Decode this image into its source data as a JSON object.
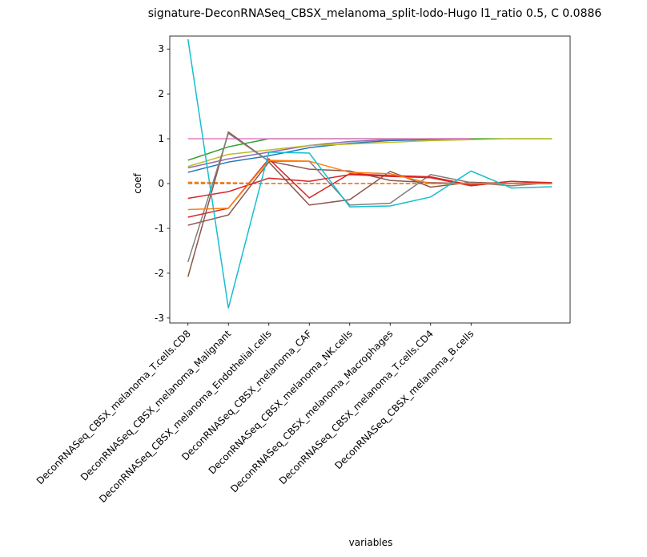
{
  "chart_data": {
    "type": "line",
    "title": "signature-DeconRNASeq_CBSX_melanoma_split-lodo-Hugo l1_ratio 0.5, C 0.0886",
    "x_label": "variables",
    "y_label": "coef",
    "x": [
      0,
      1,
      2,
      3,
      4,
      5,
      6,
      7,
      8,
      9
    ],
    "xlim": [
      -0.45,
      9.45
    ],
    "ylim": [
      -3.11,
      3.29
    ],
    "xticks": [
      {
        "value": 0,
        "label": "DeconRNASeq_CBSX_melanoma_T.cells.CD8"
      },
      {
        "value": 1,
        "label": "DeconRNASeq_CBSX_melanoma_Malignant"
      },
      {
        "value": 2,
        "label": "DeconRNASeq_CBSX_melanoma_Endothelial.cells"
      },
      {
        "value": 3,
        "label": "DeconRNASeq_CBSX_melanoma_CAF"
      },
      {
        "value": 4,
        "label": "DeconRNASeq_CBSX_melanoma_NK.cells"
      },
      {
        "value": 5,
        "label": "DeconRNASeq_CBSX_melanoma_Macrophages"
      },
      {
        "value": 6,
        "label": "DeconRNASeq_CBSX_melanoma_T.cells.CD4"
      },
      {
        "value": 7,
        "label": "DeconRNASeq_CBSX_melanoma_B.cells"
      }
    ],
    "yticks": [
      -3,
      -2,
      -1,
      0,
      1,
      2,
      3
    ],
    "series": [
      {
        "color": "#7f7f7f",
        "linestyle": "dashed",
        "values": [
          0.0,
          0.0,
          0.0,
          0.0,
          0.0,
          0.0,
          0.0,
          0.0,
          0.0,
          0.0
        ]
      },
      {
        "color": "#ff7f0e",
        "linestyle": "dashed",
        "values": [
          0.03,
          0.02,
          0.0,
          0.0,
          0.0,
          0.0,
          0.0,
          0.0,
          0.0,
          0.0
        ]
      },
      {
        "color": "#2ca02c",
        "values": [
          0.52,
          0.82,
          1,
          1,
          1,
          1,
          1,
          1,
          1,
          1
        ]
      },
      {
        "color": "#1f77b4",
        "values": [
          0.25,
          0.48,
          0.62,
          0.8,
          0.9,
          0.96,
          0.98,
          1,
          null,
          null
        ]
      },
      {
        "color": "#9467bd",
        "values": [
          0.35,
          0.55,
          0.7,
          0.85,
          0.94,
          0.98,
          1,
          1,
          null,
          null
        ]
      },
      {
        "color": "#bcbd22",
        "values": [
          0.38,
          0.65,
          0.75,
          0.85,
          0.88,
          0.92,
          0.96,
          0.98,
          1,
          1
        ]
      },
      {
        "color": "#e377c2",
        "values": [
          1,
          1,
          1,
          1,
          1,
          1,
          1,
          1,
          null,
          null
        ]
      },
      {
        "color": "#8c564b",
        "values": [
          -2.08,
          1.15,
          0.5,
          0.32,
          0.28,
          0.07,
          0.02,
          0.0,
          0.0,
          0.0
        ]
      },
      {
        "color": "#8c564b",
        "values": [
          -0.93,
          -0.7,
          0.48,
          -0.48,
          -0.36,
          0.27,
          -0.08,
          0.03,
          0.0,
          0.0
        ]
      },
      {
        "color": "#7f7f7f",
        "values": [
          -1.75,
          1.12,
          0.5,
          0.5,
          -0.48,
          -0.44,
          0.2,
          0.02,
          -0.05,
          0.02
        ]
      },
      {
        "color": "#d62728",
        "values": [
          -0.33,
          -0.18,
          0.12,
          0.05,
          0.2,
          0.16,
          0.13,
          -0.05,
          0.05,
          0.02
        ]
      },
      {
        "color": "#d62728",
        "values": [
          -0.75,
          -0.55,
          0.55,
          -0.32,
          0.22,
          0.18,
          0.15,
          -0.03,
          0.05,
          0.0
        ]
      },
      {
        "color": "#ff7f0e",
        "values": [
          -0.58,
          -0.55,
          0.52,
          0.5,
          0.25,
          0.22,
          0.0,
          0.0,
          0.0,
          0.0
        ]
      },
      {
        "color": "#17becf",
        "values": [
          3.22,
          -2.78,
          0.7,
          0.68,
          -0.52,
          -0.5,
          -0.3,
          0.28,
          -0.1,
          -0.07
        ]
      }
    ]
  }
}
